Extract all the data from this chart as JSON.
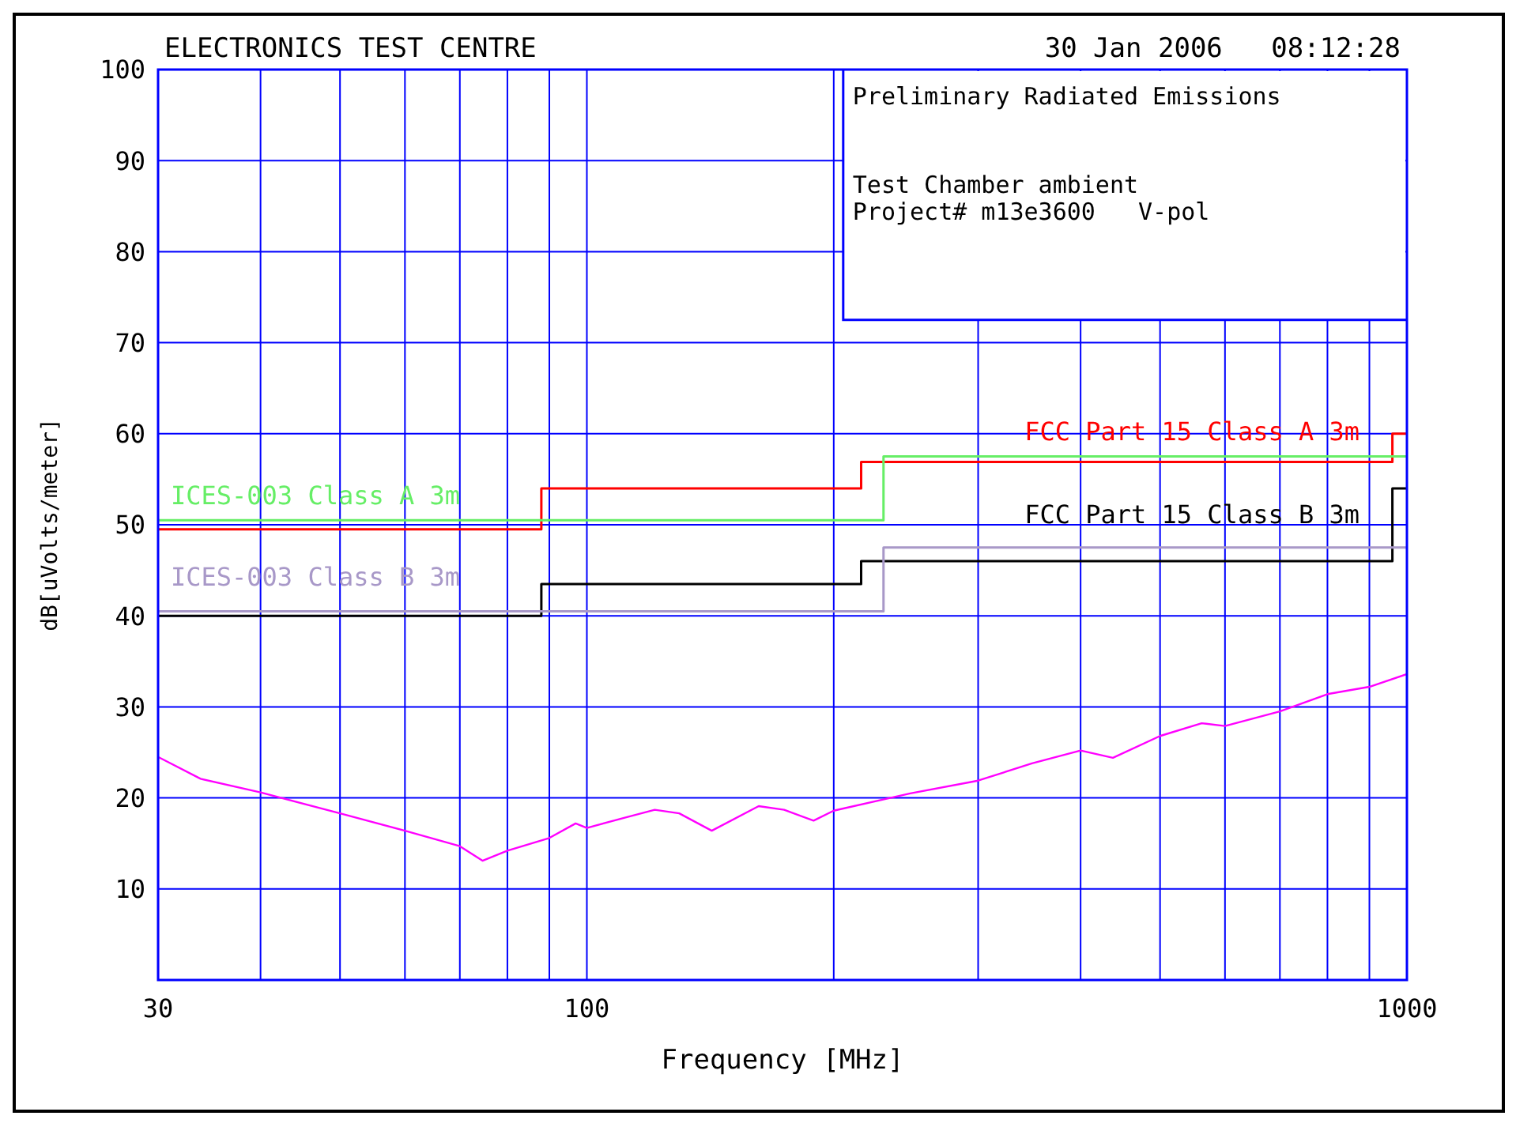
{
  "chart_data": {
    "type": "line",
    "title": "ELECTRONICS TEST CENTRE",
    "xlabel": "Frequency [MHz]",
    "ylabel": "dB[uVolts/meter]",
    "annotations": [
      "30 Jan 2006   08:12:28",
      "Preliminary Radiated Emissions",
      "Test Chamber ambient",
      "Project# m13e3600   V-pol"
    ],
    "log": "x",
    "grid": true,
    "legend": false,
    "marker": "none",
    "line_style": "solid",
    "xlim": [
      30,
      1000
    ],
    "xticks": [
      30,
      {
        "value": 40,
        "label": null
      },
      {
        "value": 50,
        "label": null
      },
      {
        "value": 60,
        "label": null
      },
      {
        "value": 70,
        "label": null
      },
      {
        "value": 80,
        "label": null
      },
      {
        "value": 90,
        "label": null
      },
      100,
      {
        "value": 200,
        "label": null
      },
      {
        "value": 300,
        "label": null
      },
      {
        "value": 400,
        "label": null
      },
      {
        "value": 500,
        "label": null
      },
      {
        "value": 600,
        "label": null
      },
      {
        "value": 700,
        "label": null
      },
      {
        "value": 800,
        "label": null
      },
      {
        "value": 900,
        "label": null
      },
      1000
    ],
    "ylim": [
      0,
      100
    ],
    "yticks": [
      10,
      20,
      30,
      40,
      50,
      60,
      70,
      80,
      90,
      100
    ],
    "series": [
      {
        "name": "FCC Part 15 Class A 3m",
        "type": "step",
        "color": "#ff0000",
        "x": [
          30,
          88,
          216,
          960,
          1000
        ],
        "values": [
          49.5,
          54,
          56.9,
          60,
          60
        ]
      },
      {
        "name": "FCC Part 15 Class B 3m",
        "type": "step",
        "color": "#000000",
        "x": [
          30,
          88,
          216,
          960,
          1000
        ],
        "values": [
          40,
          43.5,
          46,
          54,
          54
        ]
      },
      {
        "name": "ICES-003 Class A 3m",
        "type": "step",
        "color": "#66ee66",
        "x": [
          30,
          230,
          1000
        ],
        "values": [
          50.5,
          57.5,
          57.5
        ]
      },
      {
        "name": "ICES-003 Class B 3m",
        "type": "step",
        "color": "#a898c8",
        "x": [
          30,
          230,
          1000
        ],
        "values": [
          40.5,
          47.5,
          47.5
        ]
      },
      {
        "type": "line",
        "color": "#ff00ff",
        "x": [
          30,
          30,
          33.8,
          40,
          50,
          60,
          70,
          74.6,
          80,
          90,
          96.9,
          100,
          111,
          121,
          129.6,
          142,
          162,
          174,
          189,
          200,
          248,
          300,
          349,
          400,
          438,
          500,
          562,
          600,
          700,
          800,
          900,
          1000
        ],
        "values": [
          0,
          24.5,
          22.1,
          20.6,
          18.3,
          16.4,
          14.7,
          13.1,
          14.2,
          15.6,
          17.2,
          16.7,
          17.8,
          18.7,
          18.3,
          16.4,
          19.1,
          18.7,
          17.5,
          18.6,
          20.5,
          21.9,
          23.8,
          25.2,
          24.4,
          26.8,
          28.2,
          27.9,
          29.5,
          31.4,
          32.2,
          33.6
        ]
      }
    ]
  }
}
